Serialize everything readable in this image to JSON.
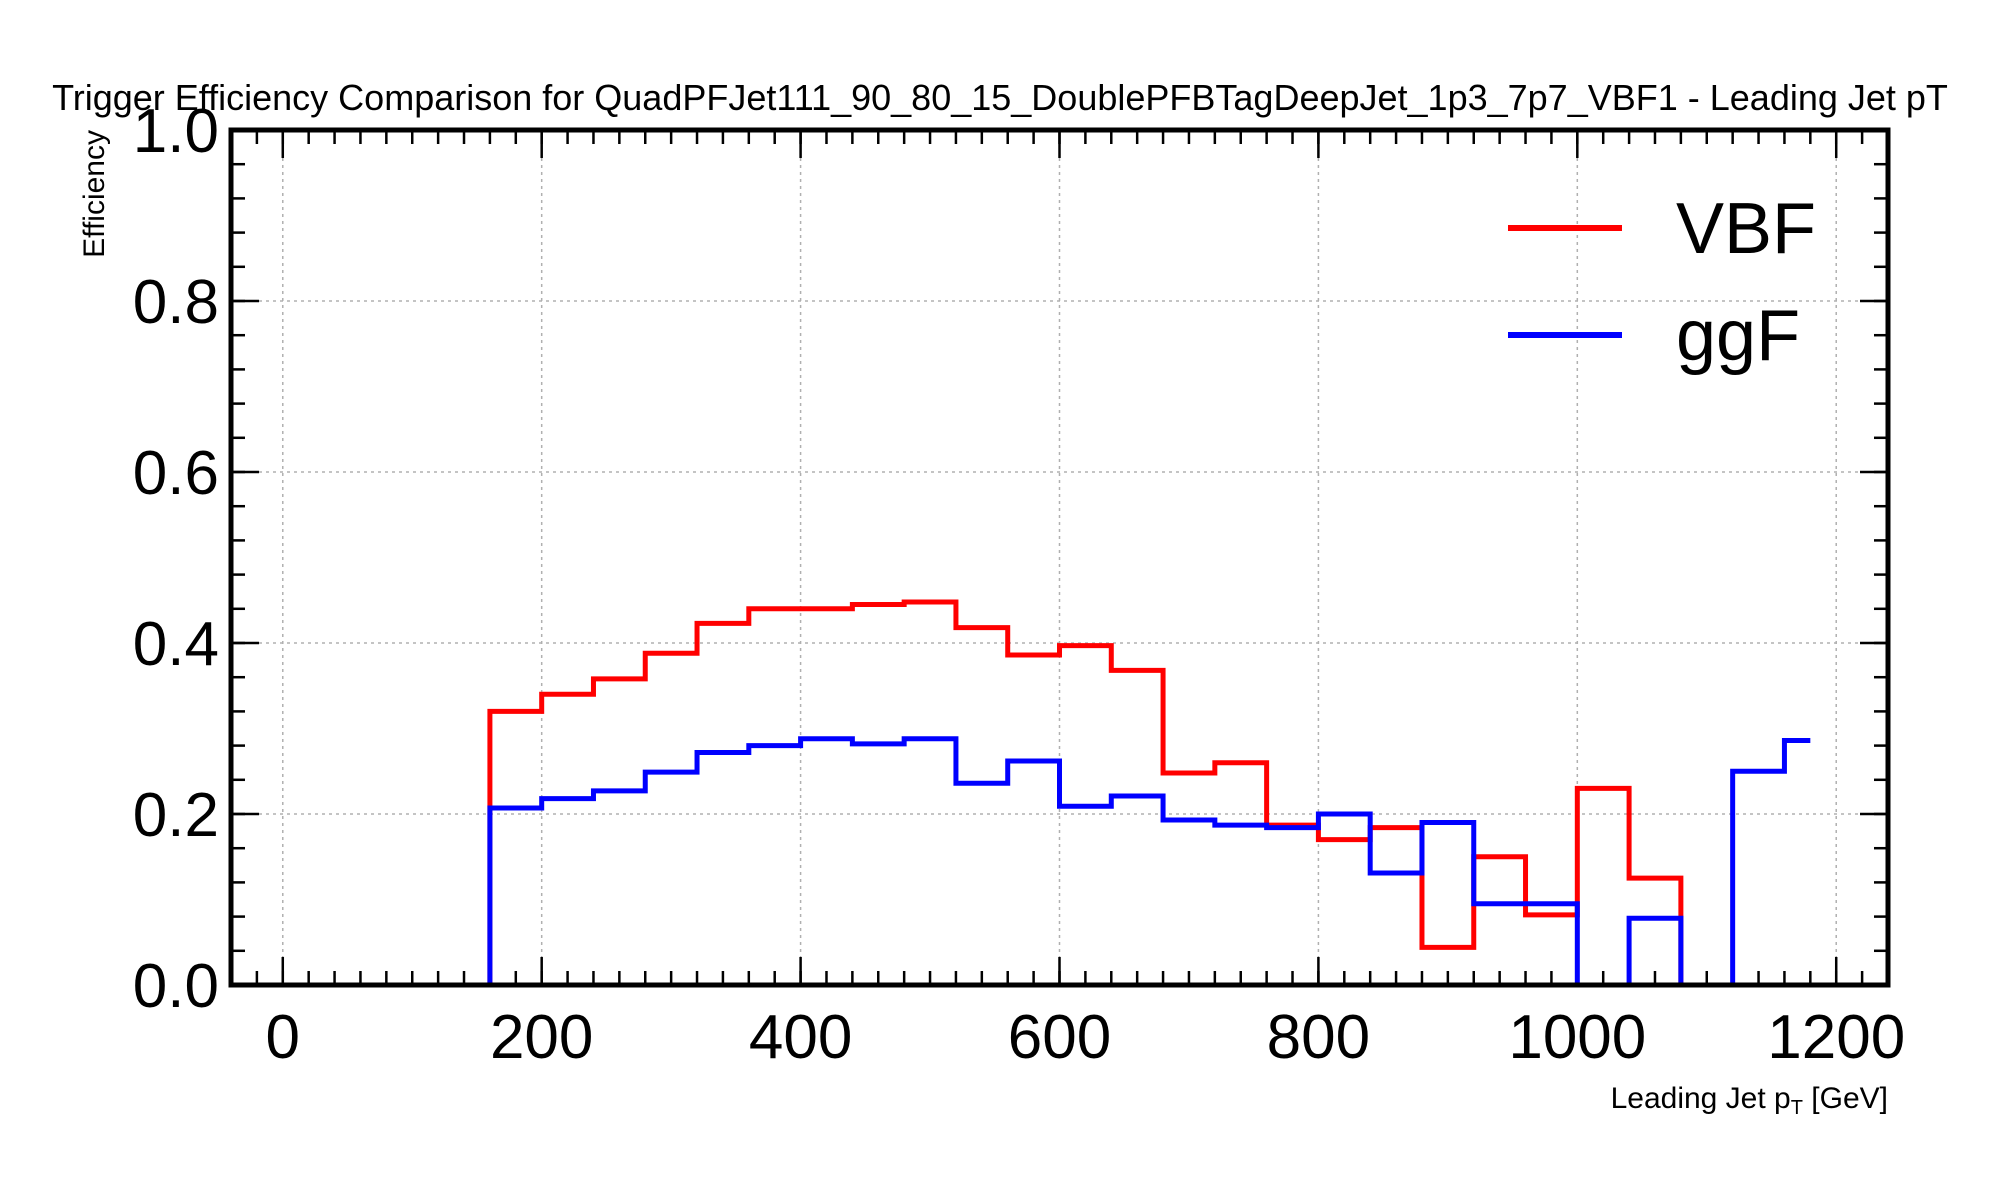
{
  "chart_data": {
    "type": "line",
    "drawstyle": "steps-post",
    "title": "Trigger Efficiency Comparison for QuadPFJet111_90_80_15_DoublePFBTagDeepJet_1p3_7p7_VBF1 - Leading Jet pT",
    "xlabel_main": "Leading Jet p",
    "xlabel_sub": "T",
    "xlabel_unit": " [GeV]",
    "ylabel": "Efficiency",
    "xlim": [
      -40,
      1240
    ],
    "ylim": [
      0,
      1.0
    ],
    "xticks": [
      0,
      200,
      400,
      600,
      800,
      1000,
      1200
    ],
    "xtick_labels": [
      "0",
      "200",
      "400",
      "600",
      "800",
      "1000",
      "1200"
    ],
    "yticks": [
      0.0,
      0.2,
      0.4,
      0.6,
      0.8,
      1.0
    ],
    "ytick_labels": [
      "0.0",
      "0.2",
      "0.4",
      "0.6",
      "0.8",
      "1.0"
    ],
    "grid": true,
    "legend_position": "top-right",
    "bin_edges": [
      160,
      200,
      240,
      280,
      320,
      360,
      400,
      440,
      480,
      520,
      560,
      600,
      640,
      680,
      720,
      760,
      800,
      840,
      880,
      920,
      960,
      1000,
      1040,
      1080,
      1120,
      1160,
      1180
    ],
    "series": [
      {
        "name": "VBF",
        "color": "#ff0000",
        "values": [
          0.32,
          0.34,
          0.358,
          0.388,
          0.423,
          0.44,
          0.44,
          0.445,
          0.448,
          0.418,
          0.386,
          0.397,
          0.368,
          0.248,
          0.26,
          0.187,
          0.17,
          0.184,
          0.044,
          0.15,
          0.082,
          0.23,
          0.125,
          0.0,
          0.0,
          0.0
        ]
      },
      {
        "name": "ggF",
        "color": "#0000ff",
        "values": [
          0.207,
          0.218,
          0.227,
          0.249,
          0.272,
          0.28,
          0.288,
          0.282,
          0.288,
          0.236,
          0.262,
          0.209,
          0.221,
          0.193,
          0.187,
          0.184,
          0.2,
          0.131,
          0.19,
          0.095,
          0.095,
          0.0,
          0.078,
          0.0,
          0.25,
          0.286
        ]
      }
    ]
  }
}
